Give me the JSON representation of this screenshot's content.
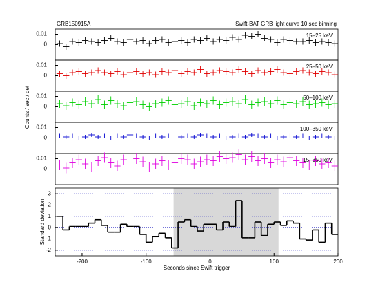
{
  "header": {
    "left": "GRB150915A",
    "right": "Swift-BAT GRB light curve 10 sec binning"
  },
  "chart_data": [
    {
      "type": "errorbar",
      "ylabel": "Counts / sec / det",
      "x": [
        -240,
        -230,
        -220,
        -210,
        -200,
        -190,
        -180,
        -170,
        -160,
        -150,
        -140,
        -130,
        -120,
        -110,
        -100,
        -90,
        -80,
        -70,
        -60,
        -50,
        -40,
        -30,
        -20,
        -10,
        0,
        10,
        20,
        30,
        40,
        50,
        60,
        70,
        80,
        90,
        100,
        110,
        120,
        130,
        140,
        150,
        160,
        170,
        180,
        190
      ],
      "xlim": [
        -242,
        200
      ],
      "ylim": [
        -0.015,
        0.015
      ],
      "yticks": [
        0,
        0.01
      ],
      "series": [
        {
          "name": "15–25 keV",
          "color": "#000000",
          "error": 0.003,
          "values": [
            0.001,
            -0.002,
            0.003,
            0.002,
            0.004,
            0.003,
            0.002,
            0.004,
            0.006,
            0.003,
            0.002,
            0.005,
            0.003,
            0.004,
            0.001,
            0.004,
            0.005,
            0.002,
            0.003,
            0.004,
            0.002,
            0.005,
            0.004,
            0.006,
            0.003,
            0.005,
            0.004,
            0.007,
            0.005,
            0.009,
            0.008,
            0.01,
            0.006,
            0.005,
            0.002,
            0.005,
            0.004,
            0.003,
            0.003,
            0.004,
            0.002,
            0.003,
            0.002,
            0.001
          ]
        },
        {
          "name": "25–50 keV",
          "color": "#e00000",
          "error": 0.003,
          "values": [
            0.002,
            0.0,
            0.003,
            0.004,
            0.002,
            0.003,
            0.005,
            0.003,
            0.002,
            0.004,
            0.001,
            0.003,
            0.004,
            0.002,
            0.003,
            0.001,
            0.004,
            0.003,
            0.005,
            0.002,
            0.004,
            0.003,
            0.006,
            0.002,
            0.003,
            0.005,
            0.004,
            0.003,
            0.006,
            0.004,
            0.002,
            0.005,
            0.003,
            0.004,
            0.006,
            0.003,
            0.002,
            0.004,
            0.005,
            0.003,
            0.002,
            0.004,
            0.003,
            0.001
          ]
        },
        {
          "name": "50–100 keV",
          "color": "#00d000",
          "error": 0.004,
          "values": [
            0.003,
            0.001,
            0.004,
            0.002,
            0.005,
            0.003,
            0.007,
            0.002,
            0.006,
            0.003,
            0.001,
            0.004,
            0.005,
            0.002,
            0.0,
            0.003,
            0.004,
            0.006,
            0.002,
            0.003,
            0.005,
            0.001,
            0.004,
            0.003,
            0.006,
            0.002,
            0.004,
            0.005,
            0.003,
            0.007,
            0.002,
            0.004,
            0.005,
            0.003,
            0.006,
            0.002,
            0.004,
            0.003,
            0.005,
            0.002,
            0.003,
            0.004,
            0.002,
            0.003
          ]
        },
        {
          "name": "100–350 keV",
          "color": "#0000d0",
          "error": 0.002,
          "values": [
            0.002,
            0.001,
            0.002,
            0.0,
            0.001,
            0.003,
            0.001,
            0.002,
            0.0,
            0.002,
            0.001,
            0.003,
            0.002,
            0.001,
            0.0,
            0.002,
            0.001,
            0.002,
            0.0,
            0.001,
            0.002,
            0.001,
            0.003,
            0.002,
            0.001,
            0.002,
            0.0,
            0.001,
            0.002,
            0.001,
            0.003,
            0.002,
            0.001,
            0.002,
            0.0,
            0.001,
            0.002,
            0.001,
            0.002,
            0.0,
            0.001,
            0.002,
            0.001,
            0.0
          ]
        },
        {
          "name": "15–350 keV",
          "color": "#e000e0",
          "error": 0.005,
          "zero_line": true,
          "values": [
            0.004,
            0.001,
            0.006,
            0.009,
            0.005,
            0.002,
            0.008,
            0.011,
            0.006,
            0.003,
            0.009,
            0.004,
            0.01,
            0.007,
            0.002,
            0.005,
            0.008,
            0.004,
            0.006,
            0.01,
            0.009,
            0.005,
            0.007,
            0.009,
            0.008,
            0.012,
            0.01,
            0.011,
            0.014,
            0.009,
            0.012,
            0.008,
            0.01,
            0.006,
            0.009,
            0.007,
            0.011,
            0.008,
            0.006,
            0.004,
            0.008,
            0.005,
            0.006,
            0.003
          ]
        }
      ]
    },
    {
      "type": "step",
      "xlabel": "Seconds since Swift trigger",
      "ylabel": "Standard deviation",
      "color": "#000000",
      "grid": true,
      "grid_color": "#2020c0",
      "highlight_x": [
        -57,
        107
      ],
      "x": [
        -240,
        -230,
        -220,
        -210,
        -200,
        -190,
        -180,
        -170,
        -160,
        -150,
        -140,
        -130,
        -120,
        -110,
        -100,
        -90,
        -80,
        -70,
        -60,
        -50,
        -40,
        -30,
        -20,
        -10,
        0,
        10,
        20,
        30,
        40,
        50,
        60,
        70,
        80,
        90,
        100,
        110,
        120,
        130,
        140,
        150,
        160,
        170,
        180,
        190
      ],
      "values": [
        1.0,
        -0.2,
        0.1,
        0.1,
        0.1,
        0.4,
        0.7,
        0.2,
        -0.4,
        -0.4,
        0.3,
        0.1,
        0.1,
        -0.6,
        -1.3,
        -0.8,
        -0.5,
        -0.9,
        -1.8,
        0.5,
        0.7,
        0.1,
        -0.3,
        0.3,
        0.3,
        -0.2,
        0.5,
        0.1,
        2.4,
        -0.9,
        -0.9,
        0.5,
        -0.7,
        0.3,
        0.5,
        0.2,
        0.6,
        0.4,
        -1.0,
        -1.1,
        -0.2,
        -1.3,
        0.4,
        -0.6
      ],
      "xlim": [
        -242,
        200
      ],
      "xticks": [
        -200,
        -100,
        0,
        100,
        200
      ],
      "ylim": [
        -2.5,
        3.5
      ],
      "yticks": [
        -2,
        -1,
        0,
        1,
        2,
        3
      ]
    }
  ]
}
